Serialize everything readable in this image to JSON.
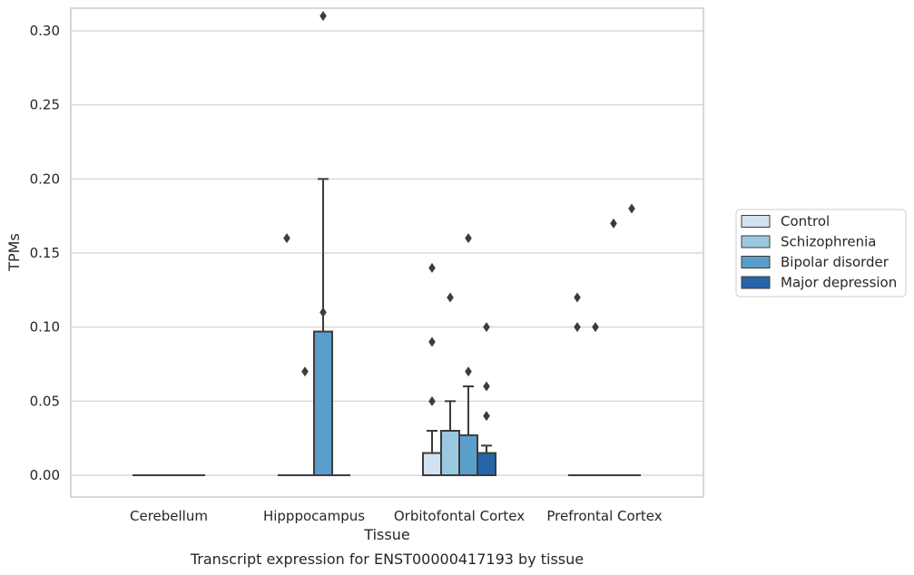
{
  "chart_data": {
    "type": "box",
    "xlabel": "Tissue",
    "ylabel": "TPMs",
    "caption": "Transcript expression for ENST00000417193 by tissue",
    "ylim": [
      -0.015,
      0.325
    ],
    "yticks": [
      "0.00",
      "0.05",
      "0.10",
      "0.15",
      "0.20",
      "0.25",
      "0.30"
    ],
    "categories": [
      "Cerebellum",
      "Hipppocampus",
      "Orbitofontal Cortex",
      "Prefrontal Cortex"
    ],
    "legend_position": "right",
    "grid": "horizontal",
    "series": [
      {
        "name": "Control",
        "color": "#d1e2f1"
      },
      {
        "name": "Schizophrenia",
        "color": "#9ac8e0"
      },
      {
        "name": "Bipolar disorder",
        "color": "#5a9fcb"
      },
      {
        "name": "Major depression",
        "color": "#2665a8"
      }
    ],
    "boxes": [
      {
        "category": 0,
        "series": 0,
        "q1": 0,
        "median": 0,
        "q3": 0,
        "whislo": 0,
        "whishi": 0,
        "fliers": []
      },
      {
        "category": 0,
        "series": 1,
        "q1": 0,
        "median": 0,
        "q3": 0,
        "whislo": 0,
        "whishi": 0,
        "fliers": []
      },
      {
        "category": 0,
        "series": 2,
        "q1": 0,
        "median": 0,
        "q3": 0,
        "whislo": 0,
        "whishi": 0,
        "fliers": []
      },
      {
        "category": 0,
        "series": 3,
        "q1": 0,
        "median": 0,
        "q3": 0,
        "whislo": 0,
        "whishi": 0,
        "fliers": []
      },
      {
        "category": 1,
        "series": 0,
        "q1": 0,
        "median": 0,
        "q3": 0,
        "whislo": 0,
        "whishi": 0,
        "fliers": [
          0.16
        ]
      },
      {
        "category": 1,
        "series": 1,
        "q1": 0,
        "median": 0,
        "q3": 0,
        "whislo": 0,
        "whishi": 0,
        "fliers": [
          0.07
        ]
      },
      {
        "category": 1,
        "series": 2,
        "q1": 0,
        "median": 0,
        "q3": 0.097,
        "whislo": 0,
        "whishi": 0.2,
        "fliers": [
          0.31,
          0.11
        ]
      },
      {
        "category": 1,
        "series": 3,
        "q1": 0,
        "median": 0,
        "q3": 0,
        "whislo": 0,
        "whishi": 0,
        "fliers": []
      },
      {
        "category": 2,
        "series": 0,
        "q1": 0,
        "median": 0,
        "q3": 0.015,
        "whislo": 0,
        "whishi": 0.03,
        "fliers": [
          0.14,
          0.09,
          0.05
        ]
      },
      {
        "category": 2,
        "series": 1,
        "q1": 0,
        "median": 0,
        "q3": 0.03,
        "whislo": 0,
        "whishi": 0.05,
        "fliers": [
          0.12
        ]
      },
      {
        "category": 2,
        "series": 2,
        "q1": 0,
        "median": 0,
        "q3": 0.027,
        "whislo": 0,
        "whishi": 0.06,
        "fliers": [
          0.16,
          0.07
        ]
      },
      {
        "category": 2,
        "series": 3,
        "q1": 0,
        "median": 0,
        "q3": 0.015,
        "whislo": 0,
        "whishi": 0.02,
        "fliers": [
          0.1,
          0.06,
          0.04
        ]
      },
      {
        "category": 3,
        "series": 0,
        "q1": 0,
        "median": 0,
        "q3": 0,
        "whislo": 0,
        "whishi": 0,
        "fliers": [
          0.12,
          0.1
        ]
      },
      {
        "category": 3,
        "series": 1,
        "q1": 0,
        "median": 0,
        "q3": 0,
        "whislo": 0,
        "whishi": 0,
        "fliers": [
          0.1
        ]
      },
      {
        "category": 3,
        "series": 2,
        "q1": 0,
        "median": 0,
        "q3": 0,
        "whislo": 0,
        "whishi": 0,
        "fliers": [
          0.17
        ]
      },
      {
        "category": 3,
        "series": 3,
        "q1": 0,
        "median": 0,
        "q3": 0,
        "whislo": 0,
        "whishi": 0,
        "fliers": [
          0.18
        ]
      }
    ]
  }
}
